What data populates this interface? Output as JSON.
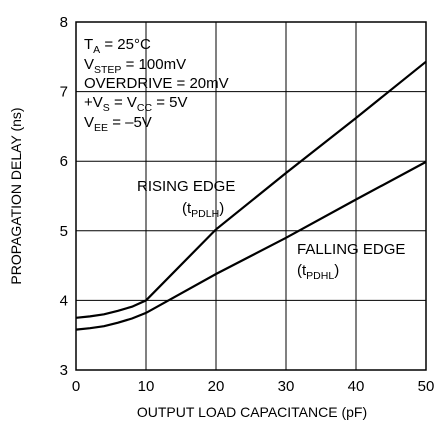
{
  "chart_data": {
    "type": "line",
    "title": "",
    "xlabel": "OUTPUT LOAD CAPACITANCE (pF)",
    "ylabel": "PROPAGATION DELAY (ns)",
    "xlim": [
      0,
      50
    ],
    "ylim": [
      3,
      8
    ],
    "xticks": [
      "0",
      "10",
      "20",
      "30",
      "40",
      "50"
    ],
    "yticks": [
      "3",
      "4",
      "5",
      "6",
      "7",
      "8"
    ],
    "grid": true,
    "conditions": [
      {
        "main": "T",
        "sub": "A",
        "rest": " = 25°C"
      },
      {
        "main": "V",
        "sub": "STEP",
        "rest": " = 100mV"
      },
      {
        "main": "OVERDRIVE = 20mV",
        "sub": "",
        "rest": ""
      },
      {
        "main": "+V",
        "sub": "S",
        "rest": " = V"
      },
      {
        "main": "V",
        "sub": "EE",
        "rest": " = –5V"
      }
    ],
    "conditions_line4_tail": {
      "sub": "CC",
      "rest": " = 5V"
    },
    "series": [
      {
        "label_line1": "RISING EDGE",
        "label_line2_open": "(t",
        "label_line2_sub": "PDLH",
        "label_line2_close": ")",
        "x": [
          0,
          2,
          4,
          6,
          8,
          10,
          20,
          30,
          40,
          50
        ],
        "y": [
          3.75,
          3.77,
          3.8,
          3.85,
          3.91,
          4.0,
          5.02,
          5.83,
          6.62,
          7.43
        ]
      },
      {
        "label_line1": "FALLING EDGE",
        "label_line2_open": "(t",
        "label_line2_sub": "PDHL",
        "label_line2_close": ")",
        "x": [
          0,
          2,
          4,
          6,
          8,
          10,
          20,
          30,
          40,
          50
        ],
        "y": [
          3.58,
          3.6,
          3.63,
          3.68,
          3.74,
          3.82,
          4.38,
          4.9,
          5.45,
          5.99
        ]
      }
    ]
  }
}
